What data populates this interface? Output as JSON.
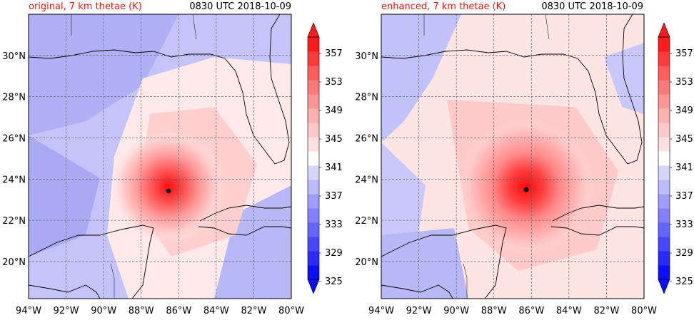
{
  "figure": {
    "init_time": "0830 UTC 2018-10-09",
    "x_ticks": [
      "94°W",
      "92°W",
      "90°W",
      "88°W",
      "86°W",
      "84°W",
      "82°W",
      "80°W"
    ],
    "y_ticks": [
      "20°N",
      "22°N",
      "24°N",
      "26°N",
      "28°N",
      "30°N"
    ],
    "x_tick_values": [
      -94,
      -92,
      -90,
      -88,
      -86,
      -84,
      -82,
      -80
    ],
    "y_tick_values": [
      20,
      22,
      24,
      26,
      28,
      30
    ],
    "lon_range": [
      -94,
      -80
    ],
    "lat_range": [
      18.2,
      32
    ],
    "grid": true
  },
  "panels": [
    {
      "title": "original, 7 km thetae (K)",
      "center": {
        "lon": -86.6,
        "lat": 23.5
      }
    },
    {
      "title": "enhanced, 7 km thetae (K)",
      "center": {
        "lon": -86.0,
        "lat": 23.7
      }
    }
  ],
  "colorbar": {
    "labels": [
      "325",
      "329",
      "333",
      "337",
      "341",
      "345",
      "349",
      "353",
      "357"
    ],
    "min": 325,
    "max": 359,
    "step": 2,
    "colors": [
      "#0d0dff",
      "#2a2aff",
      "#4747ff",
      "#6464ff",
      "#8181ff",
      "#9e9eff",
      "#bbbbff",
      "#d6d6fb",
      "#ffffff",
      "#ffdfdf",
      "#ffc8c8",
      "#ffb0b0",
      "#ff9494",
      "#ff7878",
      "#ff5c5c",
      "#ff3a3a",
      "#ff1b1b"
    ],
    "extend": "both"
  },
  "colors": {
    "title_left": "#e8180c",
    "warm": "#ff1b1b",
    "cool": "#0d0dff",
    "storm_center": "#000000"
  }
}
